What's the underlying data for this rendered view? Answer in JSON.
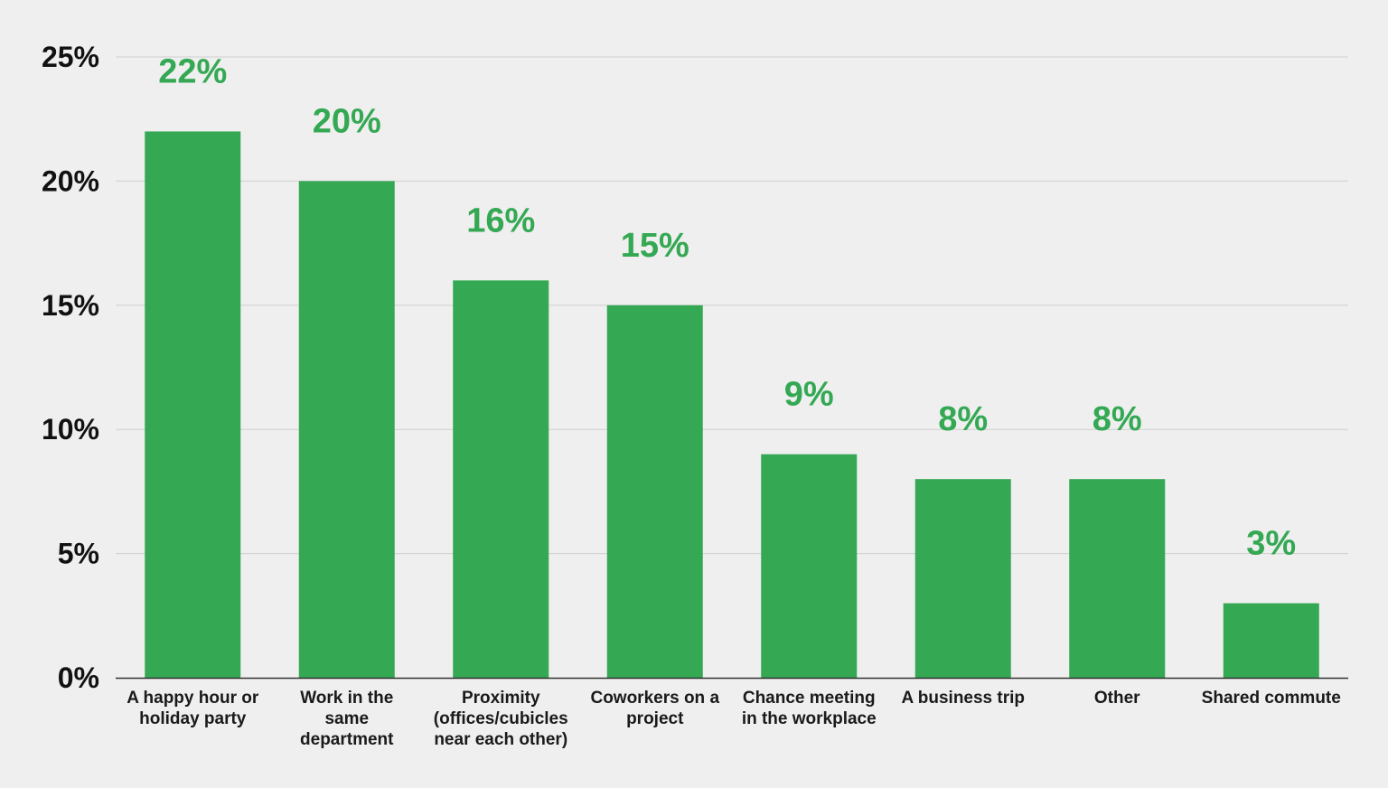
{
  "chart_data": {
    "type": "bar",
    "categories": [
      [
        "A happy hour or",
        "holiday party"
      ],
      [
        "Work in the",
        "same",
        "department"
      ],
      [
        "Proximity",
        "(offices/cubicles",
        "near each other)"
      ],
      [
        "Coworkers on a",
        "project"
      ],
      [
        "Chance meeting",
        "in the workplace"
      ],
      [
        "A business trip"
      ],
      [
        "Other"
      ],
      [
        "Shared commute"
      ]
    ],
    "values": [
      22,
      20,
      16,
      15,
      9,
      8,
      8,
      3
    ],
    "value_labels": [
      "22%",
      "20%",
      "16%",
      "15%",
      "9%",
      "8%",
      "8%",
      "3%"
    ],
    "yticks": [
      0,
      5,
      10,
      15,
      20,
      25
    ],
    "ytick_labels": [
      "0%",
      "5%",
      "10%",
      "15%",
      "20%",
      "25%"
    ],
    "ylim": [
      0,
      25
    ],
    "grid": true,
    "legend": "none",
    "colors": {
      "bar": "#34a853",
      "label": "#34a853",
      "grid": "#cfcfcf",
      "axis": "#333333",
      "background": "#efefef"
    }
  }
}
